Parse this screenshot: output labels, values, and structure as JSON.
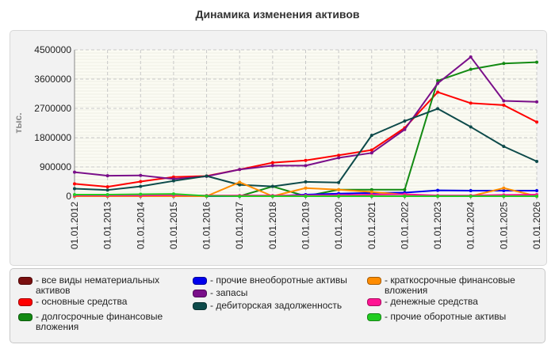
{
  "chart_data": {
    "type": "line",
    "title": "Динамика изменения активов",
    "ylabel": "тыс.",
    "xlabel": "",
    "ylim": [
      0,
      4500000
    ],
    "yticks": [
      0,
      900000,
      1800000,
      2700000,
      3600000,
      4500000
    ],
    "ytick_labels": [
      "0",
      "900000",
      "1800000",
      "2700000",
      "3600000",
      "4500000"
    ],
    "categories": [
      "01.01.2012",
      "01.01.2013",
      "01.01.2014",
      "01.01.2015",
      "01.01.2016",
      "01.01.2017",
      "01.01.2018",
      "01.01.2019",
      "01.01.2020",
      "01.01.2021",
      "01.01.2022",
      "01.01.2023",
      "01.01.2024",
      "01.01.2025",
      "01.01.2026"
    ],
    "grid": true,
    "legend_position": "bottom",
    "series": [
      {
        "name": "все виды нематериальных активов",
        "color": "#7a0f0f",
        "values": [
          0,
          0,
          0,
          0,
          0,
          0,
          0,
          0,
          0,
          0,
          0,
          0,
          0,
          0,
          0
        ]
      },
      {
        "name": "основные средства",
        "color": "#ff0000",
        "values": [
          380000,
          290000,
          450000,
          590000,
          620000,
          820000,
          1030000,
          1100000,
          1260000,
          1420000,
          2100000,
          3200000,
          2860000,
          2800000,
          2280000
        ]
      },
      {
        "name": "долгосрочные финансовые вложения",
        "color": "#138a13",
        "values": [
          0,
          0,
          0,
          0,
          0,
          0,
          300000,
          0,
          200000,
          200000,
          200000,
          3550000,
          3900000,
          4080000,
          4120000
        ]
      },
      {
        "name": "прочие внеоборотные активы",
        "color": "#0000ee",
        "values": [
          0,
          0,
          0,
          0,
          0,
          0,
          0,
          50000,
          80000,
          100000,
          110000,
          180000,
          170000,
          170000,
          170000
        ]
      },
      {
        "name": "запасы",
        "color": "#7a0f8a",
        "values": [
          740000,
          630000,
          640000,
          530000,
          610000,
          820000,
          940000,
          940000,
          1180000,
          1330000,
          2050000,
          3470000,
          4280000,
          2930000,
          2900000
        ]
      },
      {
        "name": "дебиторская задолженность",
        "color": "#0d4a4a",
        "values": [
          230000,
          190000,
          300000,
          470000,
          620000,
          350000,
          300000,
          440000,
          420000,
          1870000,
          2310000,
          2690000,
          2130000,
          1530000,
          1070000
        ]
      },
      {
        "name": "краткосрочные финансовые вложения",
        "color": "#ff8c00",
        "values": [
          0,
          0,
          0,
          0,
          0,
          430000,
          0,
          250000,
          200000,
          130000,
          50000,
          0,
          0,
          250000,
          0
        ]
      },
      {
        "name": "денежные средства",
        "color": "#ff1493",
        "values": [
          20000,
          20000,
          20000,
          30000,
          20000,
          20000,
          20000,
          20000,
          30000,
          50000,
          60000,
          20000,
          20000,
          40000,
          50000
        ]
      },
      {
        "name": "прочие оборотные активы",
        "color": "#22cc22",
        "values": [
          50000,
          50000,
          60000,
          70000,
          10000,
          0,
          0,
          0,
          0,
          0,
          0,
          0,
          0,
          0,
          0
        ]
      }
    ]
  }
}
